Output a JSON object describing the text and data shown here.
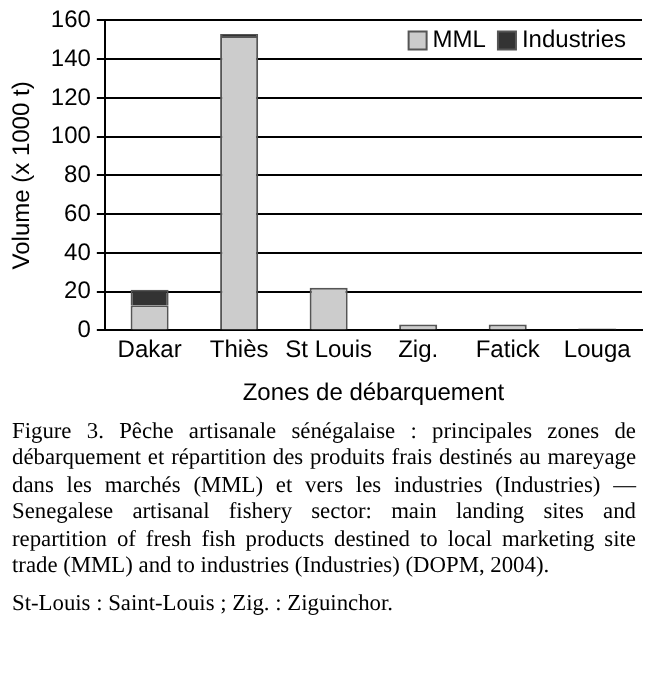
{
  "chart_data": {
    "type": "bar",
    "stacked": true,
    "xlabel": "Zones de débarquement",
    "ylabel": "Volume (x 1000 t)",
    "categories": [
      "Dakar",
      "Thiès",
      "St Louis",
      "Zig.",
      "Fatick",
      "Louga"
    ],
    "series": [
      {
        "name": "MML",
        "color": "#cccccc",
        "values": [
          13,
          152,
          22,
          3,
          3,
          null
        ]
      },
      {
        "name": "Industries",
        "color": "#333333",
        "values": [
          8,
          1,
          0,
          0,
          0,
          1
        ]
      }
    ],
    "ylim": [
      0,
      160
    ],
    "yticks": [
      0,
      20,
      40,
      60,
      80,
      100,
      120,
      140,
      160
    ],
    "grid": "y",
    "legend": "top right",
    "annotations": [
      "Figure 3. Pêche artisanale sénégalaise : principales zones de débarquement et répartition des produits frais destinés au mareyage dans les marchés (MML) et vers les industries (Industries) — Senegalese artisanal fishery sector: main landing sites and repartition of fresh fish products destined to local marketing site trade (MML) and to industries (Industries) (DOPM, 2004).",
      "St-Louis : Saint-Louis ; Zig. : Ziguinchor."
    ]
  }
}
